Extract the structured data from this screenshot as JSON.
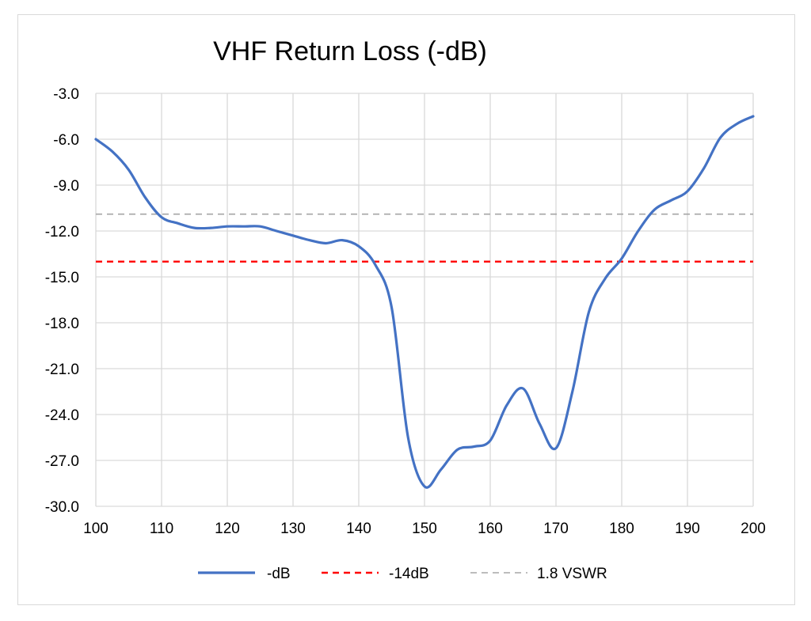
{
  "chart_data": {
    "type": "line",
    "title": "VHF Return Loss (-dB)",
    "xlabel": "",
    "ylabel": "",
    "xlim": [
      100,
      200
    ],
    "ylim": [
      -30,
      -3
    ],
    "x_ticks": [
      100,
      110,
      120,
      130,
      140,
      150,
      160,
      170,
      180,
      190,
      200
    ],
    "x_tick_labels": [
      "100",
      "110",
      "120",
      "130",
      "140",
      "150",
      "160",
      "170",
      "180",
      "190",
      "200"
    ],
    "y_ticks": [
      -3,
      -6,
      -9,
      -12,
      -15,
      -18,
      -21,
      -24,
      -27,
      -30
    ],
    "y_tick_labels": [
      "-3.0",
      "-6.0",
      "-9.0",
      "-12.0",
      "-15.0",
      "-18.0",
      "-21.0",
      "-24.0",
      "-27.0",
      "-30.0"
    ],
    "grid": true,
    "legend_position": "bottom",
    "series": [
      {
        "name": "-dB",
        "color": "#4472c4",
        "style": "solid",
        "x": [
          100,
          102.5,
          105,
          107.5,
          110,
          112.5,
          115,
          117.5,
          120,
          122.5,
          125,
          127.5,
          130,
          132.5,
          135,
          137.5,
          140,
          142.5,
          145,
          147.5,
          150,
          152.5,
          155,
          157.5,
          160,
          162.5,
          165,
          167.5,
          170,
          172.5,
          175,
          177.5,
          180,
          182.5,
          185,
          187.5,
          190,
          192.5,
          195,
          197.5,
          200
        ],
        "y": [
          -6.0,
          -6.8,
          -8.0,
          -9.8,
          -11.1,
          -11.5,
          -11.8,
          -11.8,
          -11.7,
          -11.7,
          -11.7,
          -12.0,
          -12.3,
          -12.6,
          -12.8,
          -12.6,
          -13.0,
          -14.2,
          -17.0,
          -25.5,
          -28.7,
          -27.6,
          -26.3,
          -26.1,
          -25.7,
          -23.4,
          -22.3,
          -24.6,
          -26.2,
          -22.5,
          -17.3,
          -15.1,
          -13.8,
          -12.0,
          -10.6,
          -10.0,
          -9.4,
          -7.9,
          -5.9,
          -5.0,
          -4.5
        ]
      },
      {
        "name": "-14dB",
        "color": "#ff0000",
        "style": "dashed",
        "x": [
          100,
          200
        ],
        "y": [
          -14,
          -14
        ]
      },
      {
        "name": "1.8 VSWR",
        "color": "#a5a5a5",
        "style": "dashed",
        "x": [
          100,
          200
        ],
        "y": [
          -10.9,
          -10.9
        ]
      }
    ]
  }
}
